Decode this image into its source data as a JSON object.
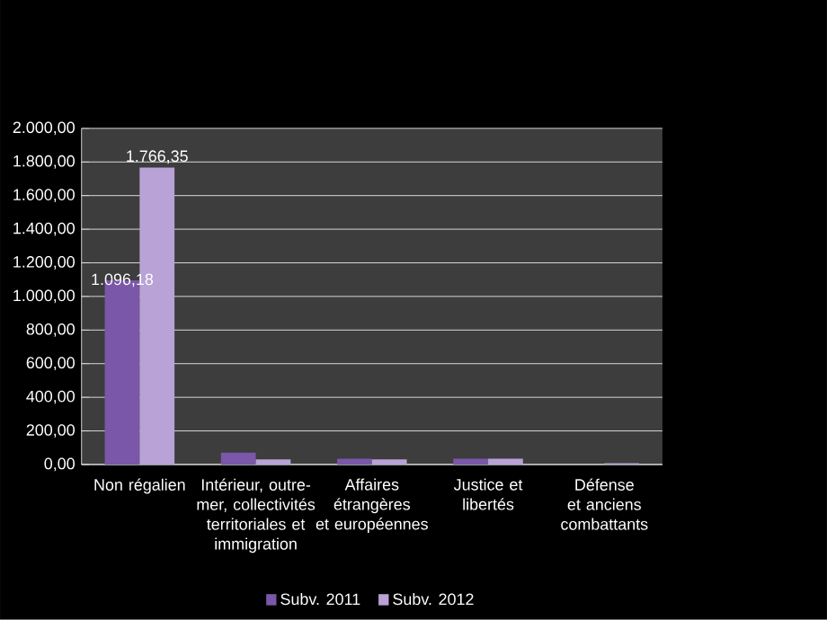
{
  "chart_data": {
    "type": "bar",
    "categories": [
      "Non régalien",
      "Intérieur, outre-mer, collectivités territoriales et immigration",
      "Affaires étrangères et européennes",
      "Justice et libertés",
      "Défense et anciens combattants"
    ],
    "series": [
      {
        "name": "Subv. 2011",
        "color": "#7a57a8",
        "values": [
          1096.18,
          70,
          35,
          35,
          null
        ],
        "value_labels": [
          "1.096,18",
          null,
          null,
          null,
          null
        ]
      },
      {
        "name": "Subv. 2012",
        "color": "#b8a2d6",
        "values": [
          1766.35,
          30,
          30,
          35,
          8
        ],
        "value_labels": [
          "1.766,35",
          null,
          null,
          null,
          null
        ]
      }
    ],
    "ylim": [
      0,
      2000
    ],
    "yticks": [
      {
        "value": 0,
        "label": "0,00"
      },
      {
        "value": 200,
        "label": "200,00"
      },
      {
        "value": 400,
        "label": "400,00"
      },
      {
        "value": 600,
        "label": "600,00"
      },
      {
        "value": 800,
        "label": "800,00"
      },
      {
        "value": 1000,
        "label": "1.000,00"
      },
      {
        "value": 1200,
        "label": "1.200,00"
      },
      {
        "value": 1400,
        "label": "1.400,00"
      },
      {
        "value": 1600,
        "label": "1.600,00"
      },
      {
        "value": 1800,
        "label": "1.800,00"
      },
      {
        "value": 2000,
        "label": "2.000,00"
      }
    ],
    "grid": "y",
    "legend": "bottom"
  }
}
